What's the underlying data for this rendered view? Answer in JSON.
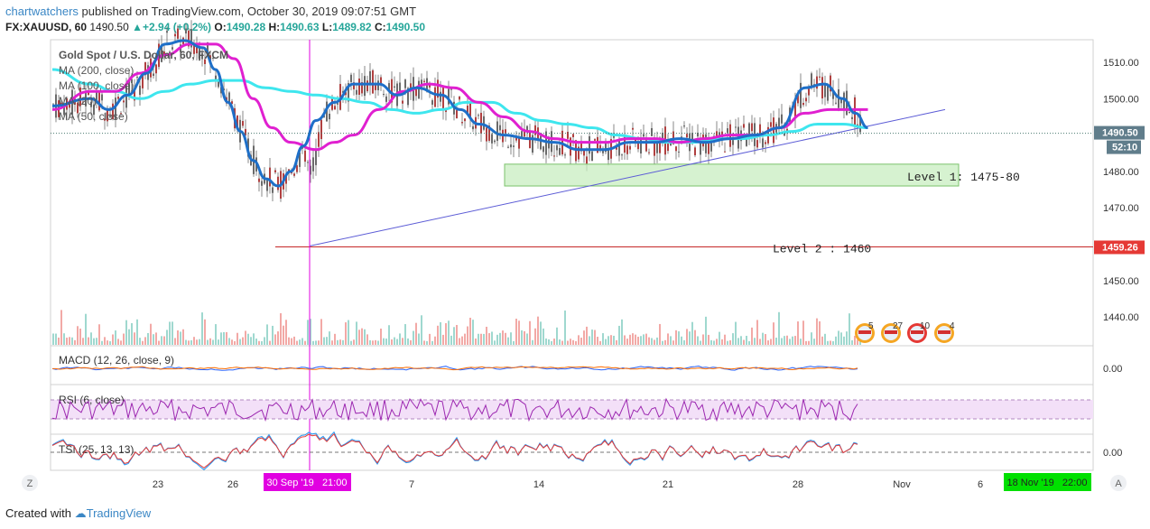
{
  "header": {
    "publisher": "chartwatchers",
    "published_text": "published on TradingView.com, October 30, 2019 09:07:51 GMT",
    "symbol": "FX:XAUUSD, 60",
    "last": "1490.50",
    "change": "+2.94 (+0.2%)",
    "o_label": "O:",
    "o": "1490.28",
    "h_label": "H:",
    "h": "1490.63",
    "l_label": "L:",
    "l": "1489.82",
    "c_label": "C:",
    "c": "1490.50"
  },
  "legend": {
    "title": "Gold Spot / U.S. Dollar, 60, FXCM",
    "ma200": "MA (200, close)",
    "ma100": "MA (100, close)",
    "ma20": "MA (20)",
    "ma50": "MA (50, close)"
  },
  "annotations": {
    "level1": "Level 1: 1475-80",
    "level2": "Level 2 : 1460",
    "price_tag": "1490.50",
    "time_tag": "52:10",
    "level2_tag": "1459.26",
    "date_tag": "30 Sep '19   21:00",
    "future_date_tag": "18 Nov '19   22:00"
  },
  "panes": {
    "macd": "MACD (12, 26, close, 9)",
    "macd_zero": "0.00",
    "rsi": "RSI (6, close)",
    "tsi": "TSI (25, 13, 13)",
    "tsi_zero": "0.00"
  },
  "events": [
    "5",
    "27",
    "10",
    "4"
  ],
  "controls": {
    "z": "Z",
    "a": "A"
  },
  "footer": {
    "created": "Created with",
    "brand": "TradingView"
  },
  "colors": {
    "ma20": "#1e6fc8",
    "ma50": "#e020d0",
    "ma200": "#3ee6ee",
    "zone": "#c8eec0",
    "level_line": "#c62828",
    "trend_line": "#5c5cd6",
    "price_tag_bg": "#607d8b",
    "level_tag_bg": "#e53935",
    "date_tag_bg": "#e100e1",
    "future_tag_bg": "#00e000",
    "rsi_band": "#f3e0f8",
    "rsi_line": "#9c27b0"
  },
  "chart_data": {
    "type": "candlestick",
    "y_ticks": [
      1510,
      1500,
      1490,
      1480,
      1470,
      1460,
      1450,
      1440
    ],
    "ylim": [
      1435,
      1518
    ],
    "x_ticks": [
      "23",
      "26",
      "30 Sep '19   21:00",
      "7",
      "14",
      "21",
      "28",
      "Nov",
      "6",
      "18 Nov '19   22:00"
    ],
    "ma20_path": [
      [
        0,
        1498
      ],
      [
        6,
        1500
      ],
      [
        9,
        1497
      ],
      [
        12,
        1501
      ],
      [
        15,
        1507
      ],
      [
        18,
        1515
      ],
      [
        21,
        1516
      ],
      [
        24,
        1514
      ],
      [
        26,
        1508
      ],
      [
        28,
        1499
      ],
      [
        30,
        1491
      ],
      [
        32,
        1483
      ],
      [
        34,
        1478
      ],
      [
        36,
        1476
      ],
      [
        38,
        1480
      ],
      [
        40,
        1487
      ],
      [
        42,
        1494
      ],
      [
        45,
        1499
      ],
      [
        48,
        1504
      ],
      [
        52,
        1504
      ],
      [
        55,
        1501
      ],
      [
        58,
        1503
      ],
      [
        62,
        1501
      ],
      [
        65,
        1497
      ],
      [
        68,
        1493
      ],
      [
        72,
        1490
      ],
      [
        76,
        1489
      ],
      [
        80,
        1488
      ],
      [
        84,
        1486
      ],
      [
        88,
        1486
      ],
      [
        92,
        1488
      ],
      [
        96,
        1488
      ],
      [
        100,
        1489
      ],
      [
        104,
        1488
      ],
      [
        108,
        1489
      ],
      [
        112,
        1490
      ],
      [
        116,
        1492
      ],
      [
        120,
        1503
      ],
      [
        123,
        1504
      ],
      [
        126,
        1500
      ],
      [
        128,
        1496
      ],
      [
        130,
        1492
      ]
    ],
    "ma50_path": [
      [
        0,
        1497
      ],
      [
        6,
        1502
      ],
      [
        10,
        1502
      ],
      [
        14,
        1507
      ],
      [
        18,
        1512
      ],
      [
        22,
        1515
      ],
      [
        26,
        1515
      ],
      [
        29,
        1511
      ],
      [
        32,
        1500
      ],
      [
        35,
        1492
      ],
      [
        38,
        1488
      ],
      [
        42,
        1486
      ],
      [
        45,
        1488
      ],
      [
        48,
        1490
      ],
      [
        52,
        1497
      ],
      [
        56,
        1502
      ],
      [
        60,
        1504
      ],
      [
        64,
        1503
      ],
      [
        68,
        1499
      ],
      [
        72,
        1495
      ],
      [
        76,
        1491
      ],
      [
        80,
        1489
      ],
      [
        84,
        1488
      ],
      [
        88,
        1488
      ],
      [
        92,
        1489
      ],
      [
        96,
        1489
      ],
      [
        100,
        1488
      ],
      [
        104,
        1489
      ],
      [
        108,
        1490
      ],
      [
        112,
        1490
      ],
      [
        116,
        1492
      ],
      [
        120,
        1496
      ],
      [
        124,
        1497
      ],
      [
        128,
        1497
      ],
      [
        130,
        1497
      ]
    ],
    "ma200_path": [
      [
        0,
        1508
      ],
      [
        6,
        1504
      ],
      [
        10,
        1502
      ],
      [
        14,
        1500
      ],
      [
        18,
        1502
      ],
      [
        22,
        1504
      ],
      [
        26,
        1505
      ],
      [
        30,
        1505
      ],
      [
        34,
        1503
      ],
      [
        38,
        1502
      ],
      [
        42,
        1501
      ],
      [
        46,
        1500
      ],
      [
        50,
        1499
      ],
      [
        54,
        1497
      ],
      [
        58,
        1496
      ],
      [
        62,
        1497
      ],
      [
        66,
        1499
      ],
      [
        70,
        1499
      ],
      [
        74,
        1496
      ],
      [
        78,
        1494
      ],
      [
        82,
        1493
      ],
      [
        86,
        1492
      ],
      [
        90,
        1490
      ],
      [
        94,
        1489
      ],
      [
        98,
        1488
      ],
      [
        102,
        1488
      ],
      [
        106,
        1489
      ],
      [
        110,
        1489
      ],
      [
        114,
        1490
      ],
      [
        118,
        1491
      ],
      [
        122,
        1493
      ],
      [
        126,
        1493
      ],
      [
        130,
        1492
      ]
    ],
    "zone_level1": [
      1476,
      1482
    ],
    "level2": 1459.26,
    "trend_line": [
      [
        1459.5,
        "30 Sep"
      ],
      [
        1497,
        "Nov"
      ]
    ],
    "last_price": 1490.5
  }
}
